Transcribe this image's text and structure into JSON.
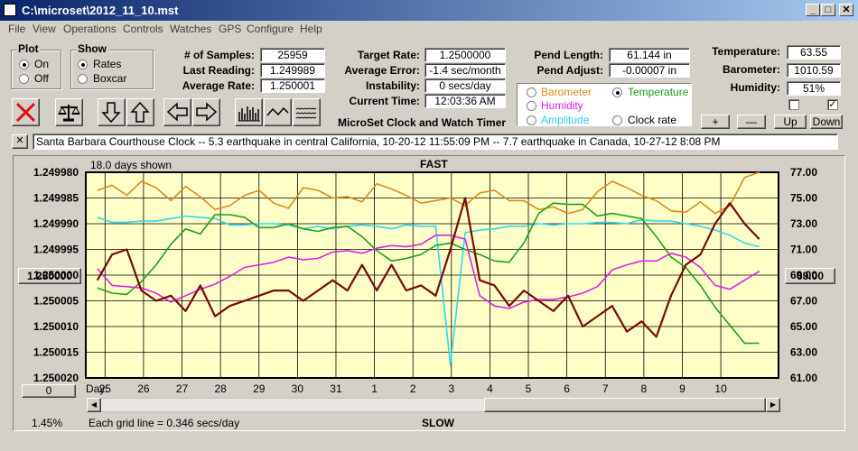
{
  "window": {
    "title": "C:\\microset\\2012_11_10.mst"
  },
  "menu": [
    "File",
    "View",
    "Operations",
    "Controls",
    "Watches",
    "GPS",
    "Configure",
    "Help"
  ],
  "plot_group": {
    "label": "Plot",
    "on": "On",
    "off": "Off",
    "selected": "On"
  },
  "show_group": {
    "label": "Show",
    "rates": "Rates",
    "boxcar": "Boxcar",
    "selected": "Rates"
  },
  "stats": {
    "samples_label": "# of Samples:",
    "samples": "25959",
    "last_label": "Last Reading:",
    "last": "1.249989",
    "avg_label": "Average Rate:",
    "avg": "1.250001",
    "target_label": "Target Rate:",
    "target": "1.2500000",
    "error_label": "Average Error:",
    "error": "-1.4 sec/month",
    "instab_label": "Instability:",
    "instab": "0 secs/day",
    "time_label": "Current Time:",
    "time": "12:03:36 AM",
    "pendlen_label": "Pend Length:",
    "pendlen": "61.144 in",
    "pendadj_label": "Pend Adjust:",
    "pendadj": "-0.00007 in",
    "temp_label": "Temperature:",
    "temp": "63.55",
    "baro_label": "Barometer:",
    "baro": "1010.59",
    "humid_label": "Humidity:",
    "humid": "51%"
  },
  "app_title": "MicroSet Clock and Watch Timer",
  "series_select": {
    "barometer": "Barometer",
    "temperature": "Temperature",
    "humidity": "Humidity",
    "amplitude": "Amplitude",
    "clockrate": "Clock rate",
    "selected": "Temperature"
  },
  "colors": {
    "barometer": "#e08a1c",
    "temperature": "#1aa01a",
    "humidity": "#e020e0",
    "amplitude": "#30d8f0",
    "rate": "#7a0a0a",
    "plotbg": "#ffffc8"
  },
  "small_buttons": {
    "plus": "+",
    "minus": "—",
    "up": "Up",
    "down": "Down"
  },
  "notes": "Santa Barbara Courthouse Clock  --  5.3 earthquake in central California, 10-20-12 11:55:09 PM  --  7.7 earthquake in Canada, 10-27-12 8:08 PM",
  "chart_data": {
    "type": "line",
    "header_left": "18.0 days shown",
    "top_label": "FAST",
    "bottom_label": "SLOW",
    "footer_left": "1.45%",
    "footer_center": "Each grid line = 0.346 secs/day",
    "left_marker": "1.250000",
    "right_marker": "69.00",
    "corner_field": "0",
    "day_label": "Day:",
    "days": [
      "25",
      "26",
      "27",
      "28",
      "29",
      "30",
      "31",
      "1",
      "2",
      "3",
      "4",
      "5",
      "6",
      "7",
      "8",
      "9",
      "10"
    ],
    "left_axis": {
      "ticks": [
        "1.249980",
        "1.249985",
        "1.249990",
        "1.249995",
        "1.250000",
        "1.250005",
        "1.250010",
        "1.250015",
        "1.250020"
      ],
      "range": [
        1.24998,
        1.25002
      ],
      "inverted": true
    },
    "right_axis": {
      "ticks": [
        "77.00",
        "75.00",
        "73.00",
        "71.00",
        "69.00",
        "67.00",
        "65.00",
        "63.00",
        "61.00"
      ],
      "range": [
        61,
        77
      ]
    },
    "x_range_days": [
      -0.5,
      17.5
    ],
    "series": [
      {
        "key": "barometer",
        "values": [
          75.6,
          76.0,
          75.2,
          76.3,
          75.8,
          74.8,
          75.9,
          75.1,
          74.1,
          74.4,
          75.2,
          75.6,
          74.6,
          74.2,
          75.8,
          75.6,
          75.0,
          75.1,
          74.7,
          76.1,
          75.7,
          75.2,
          74.6,
          74.8,
          75.0,
          74.4,
          75.4,
          75.6,
          74.8,
          74.8,
          74.1,
          74.3,
          73.8,
          74.1,
          75.5,
          76.3,
          75.8,
          75.2,
          74.8,
          74.0,
          73.9,
          74.7,
          73.8,
          74.4,
          76.6,
          77.0
        ]
      },
      {
        "key": "amplitude",
        "values": [
          73.5,
          73.1,
          73.1,
          73.2,
          73.2,
          73.4,
          73.6,
          73.5,
          73.4,
          72.9,
          72.9,
          73.0,
          73.0,
          72.9,
          72.6,
          72.8,
          72.6,
          72.8,
          72.9,
          72.8,
          72.6,
          72.9,
          72.8,
          72.8,
          62.0,
          72.3,
          72.5,
          72.6,
          72.8,
          72.8,
          73.0,
          72.9,
          73.0,
          73.0,
          73.1,
          73.1,
          73.0,
          73.3,
          73.2,
          73.2,
          73.0,
          72.8,
          72.5,
          72.1,
          71.5,
          71.2
        ]
      },
      {
        "key": "temperature",
        "values": [
          68.0,
          67.6,
          67.5,
          68.5,
          69.8,
          71.4,
          72.6,
          72.2,
          73.7,
          73.7,
          73.5,
          72.7,
          72.7,
          73.0,
          72.6,
          72.4,
          72.7,
          72.8,
          72.0,
          70.9,
          70.1,
          70.3,
          70.6,
          71.3,
          71.5,
          71.0,
          70.6,
          70.1,
          70.0,
          71.5,
          73.8,
          74.6,
          74.5,
          74.5,
          73.6,
          73.8,
          73.6,
          73.4,
          72.0,
          70.4,
          69.6,
          68.2,
          66.5,
          65.1,
          63.7,
          63.7
        ]
      },
      {
        "key": "humidity",
        "values": [
          69.5,
          68.2,
          68.1,
          68.0,
          67.6,
          66.9,
          67.4,
          67.9,
          68.3,
          68.9,
          69.6,
          69.8,
          70.0,
          70.4,
          70.2,
          70.3,
          70.8,
          70.9,
          70.7,
          71.1,
          71.3,
          71.2,
          71.4,
          72.1,
          72.1,
          71.8,
          67.4,
          66.6,
          66.4,
          66.9,
          67.1,
          67.1,
          67.3,
          67.6,
          68.1,
          69.4,
          69.8,
          70.1,
          70.1,
          70.7,
          70.4,
          69.6,
          68.2,
          67.9,
          68.6,
          69.3
        ]
      },
      {
        "key": "rate",
        "values": [
          1.250001,
          1.249996,
          1.249995,
          1.250003,
          1.250005,
          1.250004,
          1.250007,
          1.250002,
          1.250008,
          1.250006,
          1.250005,
          1.250004,
          1.250003,
          1.250003,
          1.250005,
          1.250003,
          1.250001,
          1.250003,
          1.249998,
          1.250003,
          1.249998,
          1.250003,
          1.250002,
          1.250004,
          1.249995,
          1.249985,
          1.250001,
          1.250002,
          1.250006,
          1.250003,
          1.250005,
          1.250007,
          1.250004,
          1.25001,
          1.250008,
          1.250006,
          1.250011,
          1.250009,
          1.250012,
          1.250004,
          1.249998,
          1.249996,
          1.24999,
          1.249986,
          1.24999,
          1.249993
        ]
      }
    ]
  }
}
